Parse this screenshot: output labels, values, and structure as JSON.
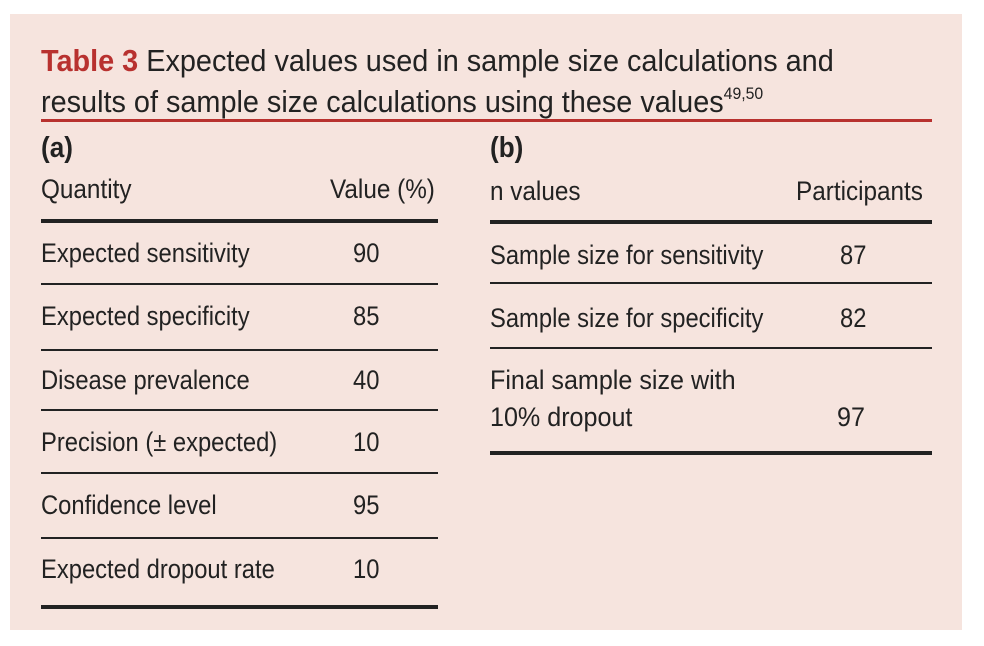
{
  "title": {
    "label": "Table 3",
    "line1": "Expected values used in sample size calculations and",
    "line2": "results of sample size calculations using these values",
    "superscript": "49,50"
  },
  "table_a": {
    "label": "(a)",
    "headers": [
      "Quantity",
      "Value (%)"
    ],
    "rows": [
      {
        "quantity": "Expected sensitivity",
        "value": "90"
      },
      {
        "quantity": "Expected specificity",
        "value": "85"
      },
      {
        "quantity": "Disease prevalence",
        "value": "40"
      },
      {
        "quantity": "Precision (± expected)",
        "value": "10"
      },
      {
        "quantity": "Confidence level",
        "value": "95"
      },
      {
        "quantity": "Expected dropout rate",
        "value": "10"
      }
    ]
  },
  "table_b": {
    "label": "(b)",
    "headers": [
      "n values",
      "Participants"
    ],
    "rows": [
      {
        "name": "Sample size for sensitivity",
        "value": "87"
      },
      {
        "name": "Sample size for specificity",
        "value": "82"
      }
    ],
    "final_row": {
      "line1": "Final sample size with",
      "line2": "10% dropout",
      "value": "97"
    }
  },
  "colors": {
    "background": "#f6e4de",
    "accent": "#b8312f",
    "text": "#222222"
  }
}
